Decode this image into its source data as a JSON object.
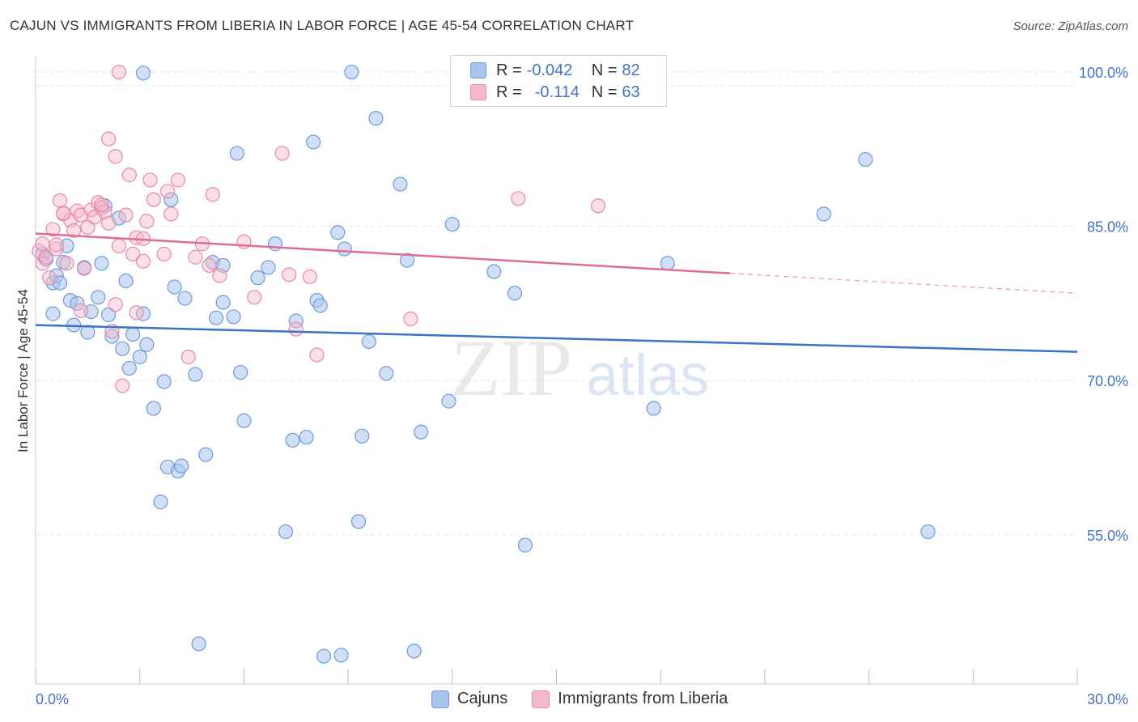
{
  "title": "CAJUN VS IMMIGRANTS FROM LIBERIA IN LABOR FORCE | AGE 45-54 CORRELATION CHART",
  "source": "Source: ZipAtlas.com",
  "watermark": {
    "zip": "ZIP",
    "atlas": "atlas"
  },
  "colors": {
    "cajun_fill": "#a9c4ee",
    "cajun_stroke": "#6f9bd8",
    "cajun_line": "#3a73c9",
    "liberia_fill": "#f6b8cc",
    "liberia_stroke": "#e58aa8",
    "liberia_line": "#e06d96",
    "tick_text": "#4472c4",
    "grid": "#e6e6e6"
  },
  "legend": {
    "rows": [
      {
        "r_label": "R =",
        "r_value": "-0.042",
        "n_label": "N =",
        "n_value": "82"
      },
      {
        "r_label": "R =",
        "r_value": "-0.114",
        "n_label": "N =",
        "n_value": "63"
      }
    ]
  },
  "bottom_legend": {
    "series1": "Cajuns",
    "series2": "Immigrants from Liberia"
  },
  "chart_data": {
    "type": "scatter",
    "title": "CAJUN VS IMMIGRANTS FROM LIBERIA IN LABOR FORCE | AGE 45-54 CORRELATION CHART",
    "xlabel": "",
    "ylabel": "In Labor Force | Age 45-54",
    "xlim": [
      0,
      30
    ],
    "ylim": [
      40.5,
      101.5
    ],
    "x_tick_labels": [
      "0.0%",
      "30.0%"
    ],
    "y_ticks": [
      55,
      70,
      85,
      100
    ],
    "y_tick_labels": [
      "55.0%",
      "70.0%",
      "85.0%",
      "100.0%"
    ],
    "grid": true,
    "series": [
      {
        "name": "Cajuns",
        "trend": {
          "x": [
            0,
            30
          ],
          "y": [
            75.4,
            72.8
          ],
          "dashed_from": null
        },
        "points": [
          [
            0.2,
            82.3
          ],
          [
            0.3,
            81.8
          ],
          [
            0.5,
            79.5
          ],
          [
            0.5,
            76.5
          ],
          [
            0.6,
            80.2
          ],
          [
            0.7,
            79.5
          ],
          [
            0.8,
            81.5
          ],
          [
            0.9,
            83.1
          ],
          [
            1.0,
            77.8
          ],
          [
            1.1,
            75.4
          ],
          [
            1.2,
            77.5
          ],
          [
            1.4,
            81.0
          ],
          [
            1.5,
            74.7
          ],
          [
            1.6,
            76.7
          ],
          [
            1.8,
            78.1
          ],
          [
            1.9,
            81.4
          ],
          [
            2.1,
            76.4
          ],
          [
            2.2,
            74.3
          ],
          [
            2.4,
            85.8
          ],
          [
            2.5,
            73.1
          ],
          [
            2.6,
            79.7
          ],
          [
            2.7,
            71.2
          ],
          [
            2.8,
            74.5
          ],
          [
            3.0,
            72.3
          ],
          [
            3.1,
            76.5
          ],
          [
            3.2,
            73.5
          ],
          [
            3.4,
            67.3
          ],
          [
            3.7,
            69.9
          ],
          [
            3.8,
            61.6
          ],
          [
            3.6,
            58.2
          ],
          [
            3.9,
            87.6
          ],
          [
            4.0,
            79.1
          ],
          [
            4.1,
            61.2
          ],
          [
            4.2,
            61.7
          ],
          [
            4.3,
            78.0
          ],
          [
            4.6,
            70.6
          ],
          [
            4.7,
            44.4
          ],
          [
            4.9,
            62.8
          ],
          [
            5.1,
            81.5
          ],
          [
            5.2,
            76.1
          ],
          [
            5.4,
            81.2
          ],
          [
            5.4,
            77.6
          ],
          [
            5.7,
            76.2
          ],
          [
            5.8,
            92.1
          ],
          [
            5.9,
            70.8
          ],
          [
            6.0,
            66.1
          ],
          [
            6.4,
            80.0
          ],
          [
            6.7,
            81.0
          ],
          [
            6.9,
            83.3
          ],
          [
            7.2,
            55.3
          ],
          [
            7.4,
            64.2
          ],
          [
            7.5,
            75.8
          ],
          [
            7.8,
            64.5
          ],
          [
            8.0,
            93.2
          ],
          [
            8.1,
            77.8
          ],
          [
            8.2,
            77.3
          ],
          [
            8.3,
            43.2
          ],
          [
            8.7,
            84.4
          ],
          [
            8.8,
            43.3
          ],
          [
            8.9,
            82.8
          ],
          [
            9.1,
            100.0
          ],
          [
            9.3,
            56.3
          ],
          [
            9.4,
            64.6
          ],
          [
            9.6,
            73.8
          ],
          [
            9.8,
            95.5
          ],
          [
            10.1,
            70.7
          ],
          [
            10.5,
            89.1
          ],
          [
            10.7,
            81.7
          ],
          [
            10.9,
            43.7
          ],
          [
            11.1,
            65.0
          ],
          [
            11.9,
            68.0
          ],
          [
            12.0,
            85.2
          ],
          [
            13.2,
            80.6
          ],
          [
            13.8,
            78.5
          ],
          [
            14.1,
            54.0
          ],
          [
            17.8,
            67.3
          ],
          [
            18.2,
            81.4
          ],
          [
            22.7,
            86.2
          ],
          [
            23.9,
            91.5
          ],
          [
            25.7,
            55.3
          ],
          [
            3.1,
            99.9
          ],
          [
            2.0,
            87.0
          ]
        ]
      },
      {
        "name": "Immigrants from Liberia",
        "trend": {
          "x": [
            0,
            30
          ],
          "y": [
            84.3,
            78.5
          ],
          "solid_until": 20
        },
        "points": [
          [
            0.1,
            82.6
          ],
          [
            0.2,
            81.4
          ],
          [
            0.2,
            83.3
          ],
          [
            0.3,
            82.0
          ],
          [
            0.4,
            80.0
          ],
          [
            0.5,
            84.7
          ],
          [
            0.6,
            82.8
          ],
          [
            0.6,
            83.2
          ],
          [
            0.7,
            87.5
          ],
          [
            0.8,
            86.2
          ],
          [
            0.9,
            81.4
          ],
          [
            1.0,
            85.6
          ],
          [
            1.1,
            84.6
          ],
          [
            1.2,
            86.5
          ],
          [
            1.3,
            86.1
          ],
          [
            1.3,
            76.8
          ],
          [
            1.4,
            80.9
          ],
          [
            1.5,
            84.9
          ],
          [
            1.6,
            86.6
          ],
          [
            1.7,
            85.9
          ],
          [
            1.8,
            87.3
          ],
          [
            1.9,
            86.8
          ],
          [
            2.0,
            86.4
          ],
          [
            2.1,
            85.3
          ],
          [
            2.1,
            93.5
          ],
          [
            2.2,
            74.8
          ],
          [
            2.3,
            77.4
          ],
          [
            2.3,
            91.8
          ],
          [
            2.4,
            83.1
          ],
          [
            2.5,
            69.5
          ],
          [
            2.6,
            86.1
          ],
          [
            2.7,
            90.0
          ],
          [
            2.8,
            82.3
          ],
          [
            2.9,
            76.6
          ],
          [
            2.9,
            83.9
          ],
          [
            3.1,
            81.6
          ],
          [
            3.1,
            83.8
          ],
          [
            3.2,
            85.5
          ],
          [
            3.3,
            89.5
          ],
          [
            3.4,
            87.6
          ],
          [
            3.7,
            82.3
          ],
          [
            3.8,
            88.4
          ],
          [
            3.9,
            86.2
          ],
          [
            4.1,
            89.5
          ],
          [
            4.4,
            72.3
          ],
          [
            4.6,
            82.0
          ],
          [
            4.8,
            83.3
          ],
          [
            5.0,
            81.2
          ],
          [
            5.1,
            88.1
          ],
          [
            5.3,
            80.2
          ],
          [
            6.0,
            83.5
          ],
          [
            6.3,
            78.1
          ],
          [
            7.1,
            92.1
          ],
          [
            7.3,
            80.3
          ],
          [
            7.5,
            75.0
          ],
          [
            7.9,
            80.1
          ],
          [
            8.1,
            72.5
          ],
          [
            10.8,
            76.0
          ],
          [
            13.9,
            87.7
          ],
          [
            16.2,
            87.0
          ],
          [
            2.4,
            100.0
          ],
          [
            1.9,
            87.1
          ],
          [
            0.8,
            86.3
          ]
        ]
      }
    ]
  }
}
